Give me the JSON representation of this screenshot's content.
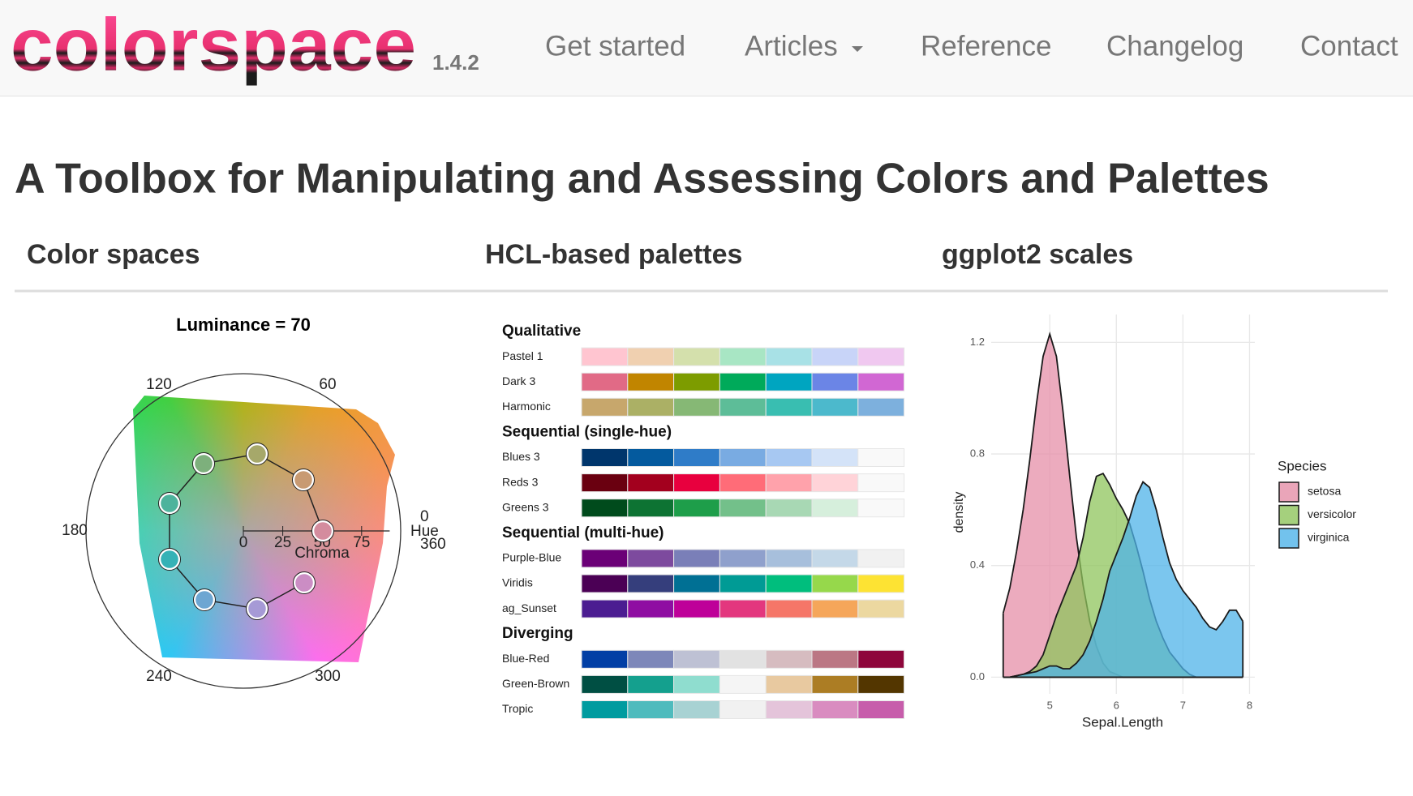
{
  "navbar": {
    "brand": "colorspace",
    "version": "1.4.2",
    "links": [
      "Get started",
      "Articles",
      "Reference",
      "Changelog",
      "Contact"
    ]
  },
  "title": "A Toolbox for Manipulating and Assessing Colors and Palettes",
  "tabs": [
    "Color spaces",
    "HCL-based palettes",
    "ggplot2 scales"
  ],
  "color_spaces": {
    "title": "Luminance = 70",
    "hue_ticks": [
      0,
      60,
      120,
      180,
      240,
      300,
      360
    ],
    "hue_label": "Hue",
    "chroma_ticks": [
      0,
      25,
      50,
      75
    ],
    "chroma_label": "Chroma"
  },
  "palettes": {
    "groups": [
      {
        "name": "Qualitative",
        "palettes": [
          {
            "name": "Pastel 1",
            "colors": [
              "#FFC5D0",
              "#F0D0B0",
              "#D4E0AC",
              "#A8E6C4",
              "#A8E1E6",
              "#C8D4F8",
              "#F0C8F0"
            ]
          },
          {
            "name": "Dark 3",
            "colors": [
              "#E16A86",
              "#C18500",
              "#7D9C00",
              "#00AA5A",
              "#00A5C0",
              "#6B85E6",
              "#D167D3"
            ]
          },
          {
            "name": "Harmonic",
            "colors": [
              "#C7A76C",
              "#ABB065",
              "#86B875",
              "#5DBD98",
              "#39BEB1",
              "#4CB9CC",
              "#7DB0DD"
            ]
          }
        ]
      },
      {
        "name": "Sequential (single-hue)",
        "palettes": [
          {
            "name": "Blues 3",
            "colors": [
              "#00366C",
              "#045A9E",
              "#2F7CC8",
              "#79ABE2",
              "#A7C8F2",
              "#D4E3F8",
              "#F9F9F9"
            ]
          },
          {
            "name": "Reds 3",
            "colors": [
              "#6A0010",
              "#A3001E",
              "#E8003E",
              "#FF6C78",
              "#FFA2AB",
              "#FFD3D8",
              "#F9F9F9"
            ]
          },
          {
            "name": "Greens 3",
            "colors": [
              "#004B1C",
              "#0D7333",
              "#1E9E4A",
              "#73C08A",
              "#A8D8B4",
              "#D6EFDC",
              "#F9F9F9"
            ]
          }
        ]
      },
      {
        "name": "Sequential (multi-hue)",
        "palettes": [
          {
            "name": "Purple-Blue",
            "colors": [
              "#6B0077",
              "#7D4A9E",
              "#7A7FB8",
              "#8FA0CC",
              "#A7BFDC",
              "#C4D8E8",
              "#F1F1F1"
            ]
          },
          {
            "name": "Viridis",
            "colors": [
              "#4B0055",
              "#353E7C",
              "#007094",
              "#009B95",
              "#00BE7D",
              "#96D84B",
              "#FDE333"
            ]
          },
          {
            "name": "ag_Sunset",
            "colors": [
              "#4B1D91",
              "#8F0DA2",
              "#BE0099",
              "#E3377E",
              "#F57668",
              "#F5A65A",
              "#ECD8A0"
            ]
          }
        ]
      },
      {
        "name": "Diverging",
        "palettes": [
          {
            "name": "Blue-Red",
            "colors": [
              "#023FA5",
              "#7D87B9",
              "#BEC1D4",
              "#E2E2E2",
              "#D6BCC0",
              "#BB7784",
              "#8E063B"
            ]
          },
          {
            "name": "Green-Brown",
            "colors": [
              "#004F43",
              "#14A08E",
              "#8FDDCF",
              "#F5F5F5",
              "#E8C9A0",
              "#AC7D24",
              "#533600"
            ]
          },
          {
            "name": "Tropic",
            "colors": [
              "#009B9F",
              "#4FBBBD",
              "#A8D2D3",
              "#F1F1F1",
              "#E4C4DA",
              "#D98CC0",
              "#C75DAB"
            ]
          }
        ]
      }
    ]
  },
  "density_plot": {
    "type": "area",
    "x_label": "Sepal.Length",
    "y_label": "density",
    "legend_title": "Species",
    "x": [
      4.3,
      4.4,
      4.5,
      4.6,
      4.7,
      4.8,
      4.9,
      5.0,
      5.1,
      5.2,
      5.3,
      5.4,
      5.5,
      5.6,
      5.7,
      5.8,
      5.9,
      6.0,
      6.1,
      6.2,
      6.3,
      6.4,
      6.5,
      6.6,
      6.7,
      6.8,
      6.9,
      7.0,
      7.1,
      7.2,
      7.3,
      7.4,
      7.5,
      7.6,
      7.7,
      7.8,
      7.9
    ],
    "series": [
      {
        "name": "setosa",
        "color": "#E58FA8",
        "values": [
          0.23,
          0.32,
          0.45,
          0.6,
          0.78,
          0.98,
          1.15,
          1.23,
          1.15,
          0.95,
          0.72,
          0.5,
          0.33,
          0.2,
          0.11,
          0.05,
          0.02,
          0.01,
          0,
          0,
          0,
          0,
          0,
          0,
          0,
          0,
          0,
          0,
          0,
          0,
          0,
          0,
          0,
          0,
          0,
          0,
          0
        ]
      },
      {
        "name": "versicolor",
        "color": "#8FC45C",
        "values": [
          0,
          0,
          0.005,
          0.01,
          0.02,
          0.04,
          0.08,
          0.15,
          0.22,
          0.28,
          0.34,
          0.4,
          0.5,
          0.63,
          0.72,
          0.73,
          0.69,
          0.64,
          0.6,
          0.55,
          0.47,
          0.38,
          0.28,
          0.2,
          0.14,
          0.09,
          0.06,
          0.03,
          0.01,
          0,
          0,
          0,
          0,
          0,
          0,
          0,
          0
        ]
      },
      {
        "name": "virginica",
        "color": "#4FB3E8",
        "values": [
          0,
          0,
          0.005,
          0.01,
          0.015,
          0.02,
          0.03,
          0.04,
          0.04,
          0.03,
          0.03,
          0.05,
          0.08,
          0.13,
          0.2,
          0.28,
          0.38,
          0.44,
          0.5,
          0.57,
          0.65,
          0.7,
          0.68,
          0.6,
          0.5,
          0.41,
          0.35,
          0.31,
          0.28,
          0.25,
          0.21,
          0.18,
          0.17,
          0.2,
          0.24,
          0.24,
          0.2
        ]
      }
    ],
    "xlim": [
      4.12,
      8.08
    ],
    "ylim": [
      -0.06,
      1.3
    ],
    "xticks": [
      5,
      6,
      7,
      8
    ],
    "yticks": [
      {
        "value": 0,
        "label": "0.0"
      },
      0.4,
      0.8,
      1.2
    ],
    "grid": true
  }
}
